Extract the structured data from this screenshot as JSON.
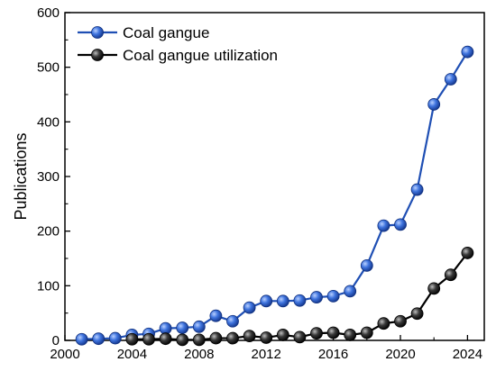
{
  "chart_data": {
    "type": "line",
    "title": "",
    "xlabel": "",
    "ylabel": "Publications",
    "xlim": [
      2000,
      2025
    ],
    "ylim": [
      0,
      600
    ],
    "xticks": [
      2000,
      2004,
      2008,
      2012,
      2016,
      2020,
      2024
    ],
    "yticks": [
      0,
      100,
      200,
      300,
      400,
      500,
      600
    ],
    "grid": false,
    "legend_position": "top-left",
    "series": [
      {
        "name": "Coal gangue",
        "color": "#1f4fb4",
        "x": [
          2001,
          2002,
          2003,
          2004,
          2005,
          2006,
          2007,
          2008,
          2009,
          2010,
          2011,
          2012,
          2013,
          2014,
          2015,
          2016,
          2017,
          2018,
          2019,
          2020,
          2021,
          2022,
          2023,
          2024
        ],
        "y": [
          2,
          3,
          4,
          10,
          12,
          22,
          23,
          25,
          45,
          35,
          60,
          72,
          72,
          73,
          79,
          81,
          90,
          137,
          210,
          212,
          276,
          432,
          478,
          528
        ]
      },
      {
        "name": "Coal gangue utilization",
        "color": "#000000",
        "x": [
          2004,
          2005,
          2006,
          2007,
          2008,
          2009,
          2010,
          2011,
          2012,
          2013,
          2014,
          2015,
          2016,
          2017,
          2018,
          2019,
          2020,
          2021,
          2022,
          2023,
          2024
        ],
        "y": [
          2,
          2,
          3,
          1,
          1,
          4,
          4,
          8,
          5,
          10,
          6,
          13,
          14,
          10,
          14,
          31,
          35,
          49,
          95,
          120,
          160
        ]
      }
    ]
  }
}
